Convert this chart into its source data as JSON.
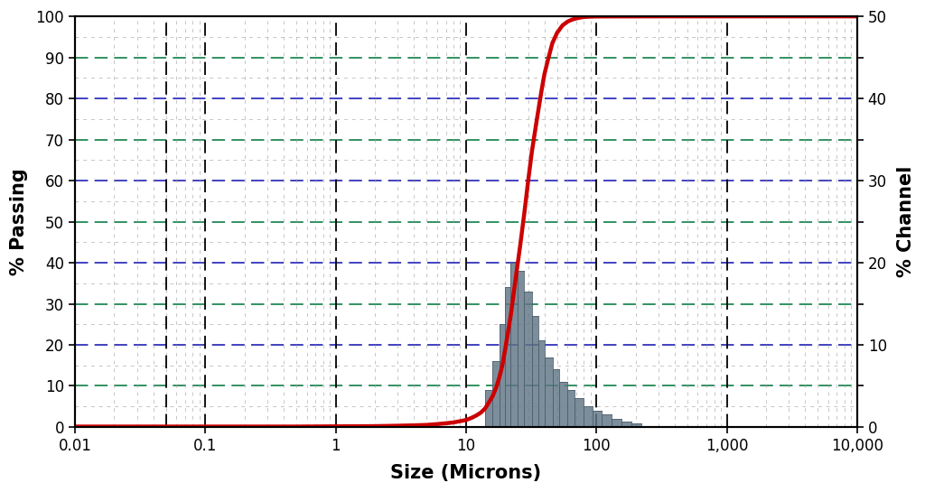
{
  "title": "",
  "xlabel": "Size (Microns)",
  "ylabel_left": "% Passing",
  "ylabel_right": "% Channel",
  "xlim": [
    0.01,
    10000
  ],
  "ylim_left": [
    0,
    100
  ],
  "ylim_right": [
    0,
    50
  ],
  "yticks_left": [
    0,
    10,
    20,
    30,
    40,
    50,
    60,
    70,
    80,
    90,
    100
  ],
  "yticks_left_labels": [
    "0",
    "10",
    "20",
    "30",
    "40",
    "50",
    "60",
    "70",
    "80",
    "90",
    "100"
  ],
  "yticks_right": [
    0,
    5,
    10,
    15,
    20,
    25,
    30,
    35,
    40,
    45,
    50
  ],
  "yticks_right_labels": [
    "0",
    "",
    "10",
    "",
    "20",
    "",
    "30",
    "",
    "40",
    "",
    "50"
  ],
  "background_color": "#ffffff",
  "grid_gray_color": "#a0a0a0",
  "grid_blue_color": "#3333bb",
  "grid_green_color": "#228855",
  "bar_color": "#607585",
  "bar_edge_color": "#506070",
  "line_color": "#cc0000",
  "line_width": 3.2,
  "cumulative_x": [
    0.01,
    0.02,
    0.05,
    0.1,
    0.2,
    0.5,
    1.0,
    2.0,
    3.0,
    4.0,
    5.0,
    6.0,
    7.0,
    8.0,
    9.0,
    10.0,
    11.0,
    12.0,
    13.0,
    14.0,
    15.0,
    16.0,
    17.0,
    18.0,
    19.0,
    20.0,
    22.0,
    24.0,
    26.0,
    28.0,
    30.0,
    32.0,
    35.0,
    38.0,
    40.0,
    43.0,
    46.0,
    50.0,
    55.0,
    60.0,
    65.0,
    70.0,
    75.0,
    80.0,
    90.0,
    100.0,
    120.0,
    150.0,
    200.0,
    300.0,
    500.0,
    1000.0,
    2000.0,
    5000.0,
    10000.0
  ],
  "cumulative_y": [
    0.1,
    0.1,
    0.1,
    0.1,
    0.1,
    0.1,
    0.15,
    0.2,
    0.3,
    0.4,
    0.5,
    0.7,
    0.9,
    1.1,
    1.4,
    1.7,
    2.2,
    2.8,
    3.5,
    4.5,
    6.0,
    7.5,
    9.5,
    12.0,
    15.0,
    19.0,
    27.0,
    36.0,
    44.0,
    52.0,
    60.0,
    67.0,
    75.0,
    82.0,
    86.0,
    90.0,
    93.5,
    96.0,
    97.8,
    98.7,
    99.2,
    99.5,
    99.7,
    99.85,
    99.93,
    99.97,
    99.98,
    99.99,
    99.99,
    100.0,
    100.0,
    100.0,
    100.0,
    100.0,
    100.0
  ],
  "hist_bins": [
    14.0,
    16.0,
    18.0,
    20.0,
    22.0,
    25.0,
    28.0,
    32.0,
    36.0,
    40.0,
    46.0,
    52.0,
    60.0,
    68.0,
    80.0,
    94.0,
    110.0,
    130.0,
    155.0,
    185.0,
    220.0
  ],
  "hist_values_channel_pct": [
    4.5,
    8.0,
    12.5,
    17.0,
    20.0,
    19.0,
    16.5,
    13.5,
    10.5,
    8.5,
    7.0,
    5.5,
    4.5,
    3.5,
    2.5,
    2.0,
    1.5,
    1.0,
    0.7,
    0.4
  ],
  "xtick_positions": [
    0.01,
    0.1,
    1.0,
    10.0,
    100.0,
    1000.0,
    10000.0
  ],
  "xtick_labels": [
    "0.01",
    "0.1",
    "1",
    "10",
    "100",
    "1,000",
    "10,000"
  ],
  "major_vline_x": [
    0.1,
    1.0,
    10.0,
    100.0,
    1000.0
  ],
  "extra_vline_x": [
    0.05
  ],
  "font_size_axis_label": 15,
  "font_size_tick": 12
}
